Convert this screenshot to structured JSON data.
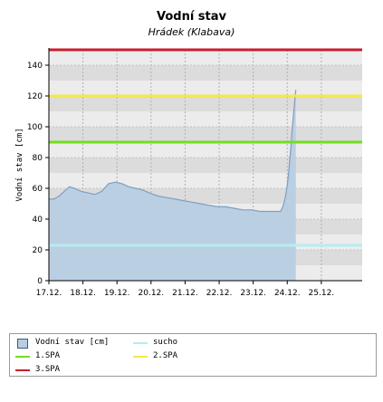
{
  "chart_data": {
    "type": "area",
    "title": "Vodní stav",
    "subtitle": "Hrádek (Klabava)",
    "ylabel": "Vodní stav [cm]",
    "ylim": [
      0,
      150
    ],
    "yticks": [
      0,
      20,
      40,
      60,
      80,
      100,
      120,
      140
    ],
    "x_tick_labels": [
      "17.12.",
      "18.12.",
      "19.12.",
      "20.12.",
      "21.12.",
      "22.12.",
      "23.12.",
      "24.12.",
      "25.12."
    ],
    "x_range_days": [
      0,
      9.2
    ],
    "grid": true,
    "series": [
      {
        "name": "Vodní stav [cm]",
        "color": "#b8cde3",
        "line_color": "#7f9ec2",
        "points": [
          [
            0.0,
            53
          ],
          [
            0.15,
            53
          ],
          [
            0.3,
            55
          ],
          [
            0.45,
            58
          ],
          [
            0.6,
            61
          ],
          [
            0.75,
            60
          ],
          [
            0.95,
            58
          ],
          [
            1.15,
            57
          ],
          [
            1.35,
            56
          ],
          [
            1.55,
            58
          ],
          [
            1.75,
            63
          ],
          [
            1.95,
            64
          ],
          [
            2.15,
            63
          ],
          [
            2.35,
            61
          ],
          [
            2.55,
            60
          ],
          [
            2.75,
            59
          ],
          [
            2.95,
            57
          ],
          [
            3.2,
            55
          ],
          [
            3.45,
            54
          ],
          [
            3.7,
            53
          ],
          [
            3.95,
            52
          ],
          [
            4.2,
            51
          ],
          [
            4.45,
            50
          ],
          [
            4.7,
            49
          ],
          [
            4.95,
            48
          ],
          [
            5.2,
            48
          ],
          [
            5.45,
            47
          ],
          [
            5.7,
            46
          ],
          [
            5.95,
            46
          ],
          [
            6.2,
            45
          ],
          [
            6.45,
            45
          ],
          [
            6.7,
            45
          ],
          [
            6.8,
            45
          ],
          [
            6.85,
            47
          ],
          [
            6.9,
            50
          ],
          [
            6.95,
            55
          ],
          [
            7.0,
            62
          ],
          [
            7.05,
            72
          ],
          [
            7.1,
            85
          ],
          [
            7.15,
            100
          ],
          [
            7.2,
            112
          ],
          [
            7.25,
            124
          ]
        ]
      }
    ],
    "reference_lines": [
      {
        "name": "sucho",
        "value": 23,
        "color": "#b7ecef"
      },
      {
        "name": "1.SPA",
        "value": 90,
        "color": "#74dd1e"
      },
      {
        "name": "2.SPA",
        "value": 120,
        "color": "#f6e845"
      },
      {
        "name": "3.SPA",
        "value": 150,
        "color": "#c81e2c"
      }
    ]
  },
  "legend": {
    "items": [
      {
        "label": "Vodní stav [cm]",
        "kind": "box",
        "color": "#b8cde3",
        "border": "#345a8a"
      },
      {
        "label": "sucho",
        "kind": "line",
        "color": "#b7ecef"
      },
      {
        "label": "1.SPA",
        "kind": "line",
        "color": "#74dd1e"
      },
      {
        "label": "2.SPA",
        "kind": "line",
        "color": "#f6e845"
      },
      {
        "label": "3.SPA",
        "kind": "line",
        "color": "#c81e2c"
      }
    ]
  }
}
